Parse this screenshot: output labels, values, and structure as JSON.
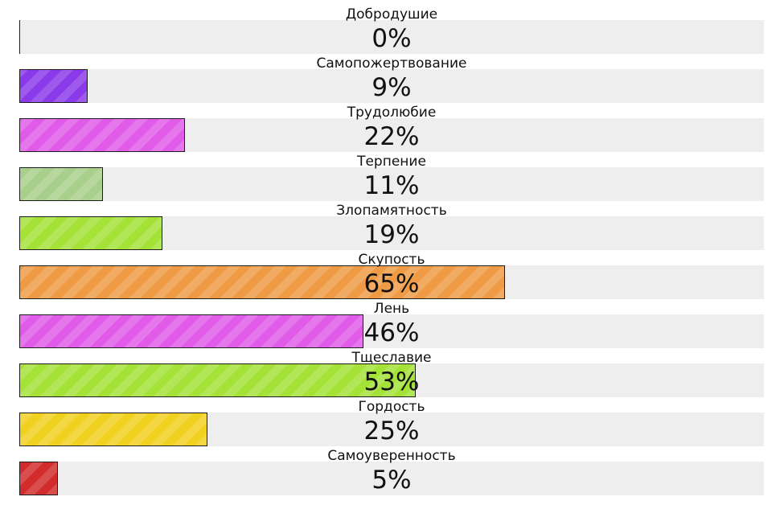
{
  "items": [
    {
      "label": "Добродушие",
      "value": 0,
      "value_text": "0%",
      "color": "#777777"
    },
    {
      "label": "Самопожертвование",
      "value": 9,
      "value_text": "9%",
      "color": "#8a3ae8"
    },
    {
      "label": "Трудолюбие",
      "value": 22,
      "value_text": "22%",
      "color": "#e05ce8"
    },
    {
      "label": "Терпение",
      "value": 11,
      "value_text": "11%",
      "color": "#a9cf8c"
    },
    {
      "label": "Злопамятность",
      "value": 19,
      "value_text": "19%",
      "color": "#a4e238"
    },
    {
      "label": "Скупость",
      "value": 65,
      "value_text": "65%",
      "color": "#ef9b45"
    },
    {
      "label": "Лень",
      "value": 46,
      "value_text": "46%",
      "color": "#e05ce8"
    },
    {
      "label": "Тщеславие",
      "value": 53,
      "value_text": "53%",
      "color": "#a4e238"
    },
    {
      "label": "Гордость",
      "value": 25,
      "value_text": "25%",
      "color": "#f1d11f"
    },
    {
      "label": "Самоуверенность",
      "value": 5,
      "value_text": "5%",
      "color": "#d12b2b"
    }
  ]
}
